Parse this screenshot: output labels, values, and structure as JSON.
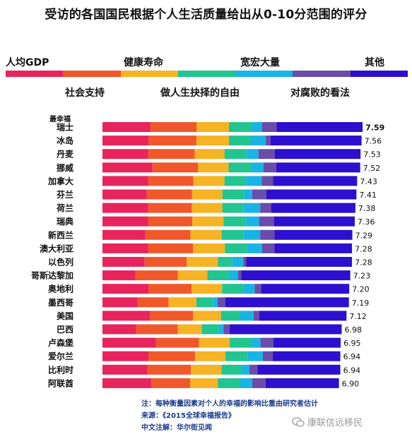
{
  "title": "受访的各国国民根据个人生活质量给出从0-10分范围的评分",
  "legend": {
    "items": [
      {
        "label": "人均GDP",
        "color": "#e8245c"
      },
      {
        "label": "社会支持",
        "color": "#f0582c"
      },
      {
        "label": "健康寿命",
        "color": "#f6b324"
      },
      {
        "label": "做人生抉择的自由",
        "color": "#22c490"
      },
      {
        "label": "宽宏大量",
        "color": "#18b4e4"
      },
      {
        "label": "对腐败的看法",
        "color": "#6a4caa"
      },
      {
        "label": "其他",
        "color": "#2d0fcf"
      }
    ]
  },
  "rank_header": "最幸福",
  "chart_data": {
    "type": "bar",
    "orientation": "horizontal",
    "stacked": true,
    "title": "受访的各国国民根据个人生活质量给出从0-10分范围的评分",
    "categories": [
      "瑞士",
      "冰岛",
      "丹麦",
      "挪威",
      "加拿大",
      "芬兰",
      "荷兰",
      "瑞典",
      "新西兰",
      "澳大利亚",
      "以色列",
      "哥斯达黎加",
      "奥地利",
      "墨西哥",
      "美国",
      "巴西",
      "卢森堡",
      "爱尔兰",
      "比利时",
      "阿联酋"
    ],
    "totals": [
      7.59,
      7.56,
      7.53,
      7.52,
      7.43,
      7.41,
      7.38,
      7.36,
      7.29,
      7.28,
      7.28,
      7.23,
      7.2,
      7.19,
      7.12,
      6.98,
      6.95,
      6.94,
      6.94,
      6.9
    ],
    "total_labels": [
      "7.59",
      "7.56",
      "7.53",
      "7.52",
      "7.43",
      "7.41",
      "7.38",
      "7.36",
      "7.29",
      "7.28",
      "7.28",
      "7.23",
      "7.20",
      "7.19",
      "7.12",
      "6.98",
      "6.95",
      "6.94",
      "6.94",
      "6.90"
    ],
    "series": [
      {
        "name": "人均GDP",
        "values": [
          1.4,
          1.34,
          1.33,
          1.46,
          1.33,
          1.29,
          1.33,
          1.33,
          1.25,
          1.33,
          1.23,
          0.96,
          1.34,
          1.02,
          1.39,
          0.98,
          1.56,
          1.34,
          1.31,
          1.43
        ]
      },
      {
        "name": "社会支持",
        "values": [
          1.35,
          1.4,
          1.36,
          1.33,
          1.32,
          1.32,
          1.28,
          1.29,
          1.32,
          1.31,
          1.23,
          1.24,
          1.26,
          0.91,
          1.25,
          1.22,
          1.26,
          1.36,
          1.27,
          1.13
        ]
      },
      {
        "name": "健康寿命",
        "values": [
          0.94,
          0.95,
          0.87,
          0.89,
          0.91,
          0.89,
          0.89,
          0.91,
          0.91,
          0.93,
          0.91,
          0.86,
          0.89,
          0.81,
          0.82,
          0.7,
          0.89,
          0.89,
          0.89,
          0.81
        ]
      },
      {
        "name": "做人生抉择的自由",
        "values": [
          0.67,
          0.63,
          0.65,
          0.67,
          0.63,
          0.64,
          0.62,
          0.66,
          0.64,
          0.65,
          0.41,
          0.63,
          0.62,
          0.48,
          0.55,
          0.49,
          0.62,
          0.64,
          0.58,
          0.64
        ]
      },
      {
        "name": "宽宏大量",
        "values": [
          0.3,
          0.44,
          0.34,
          0.35,
          0.46,
          0.23,
          0.48,
          0.38,
          0.48,
          0.44,
          0.33,
          0.26,
          0.33,
          0.14,
          0.4,
          0.14,
          0.28,
          0.45,
          0.24,
          0.36
        ]
      },
      {
        "name": "对腐败的看法",
        "values": [
          0.42,
          0.14,
          0.48,
          0.37,
          0.33,
          0.41,
          0.32,
          0.44,
          0.42,
          0.36,
          0.08,
          0.1,
          0.19,
          0.22,
          0.16,
          0.18,
          0.38,
          0.29,
          0.23,
          0.39
        ]
      },
      {
        "name": "其他",
        "values": [
          2.51,
          2.66,
          2.5,
          2.45,
          2.45,
          2.63,
          2.46,
          2.35,
          2.27,
          2.26,
          3.09,
          3.18,
          2.57,
          3.61,
          2.55,
          3.27,
          1.96,
          1.97,
          2.42,
          2.14
        ]
      }
    ]
  },
  "notes": {
    "note": "注：每种衡量因素对个人的幸福的影响比重由研究者估计",
    "source": "来源：《2015全球幸福报告》",
    "translation": "中文注解：华尔街见闻"
  },
  "watermark": {
    "text": "康联信远移民",
    "icon": "wechat-icon"
  }
}
